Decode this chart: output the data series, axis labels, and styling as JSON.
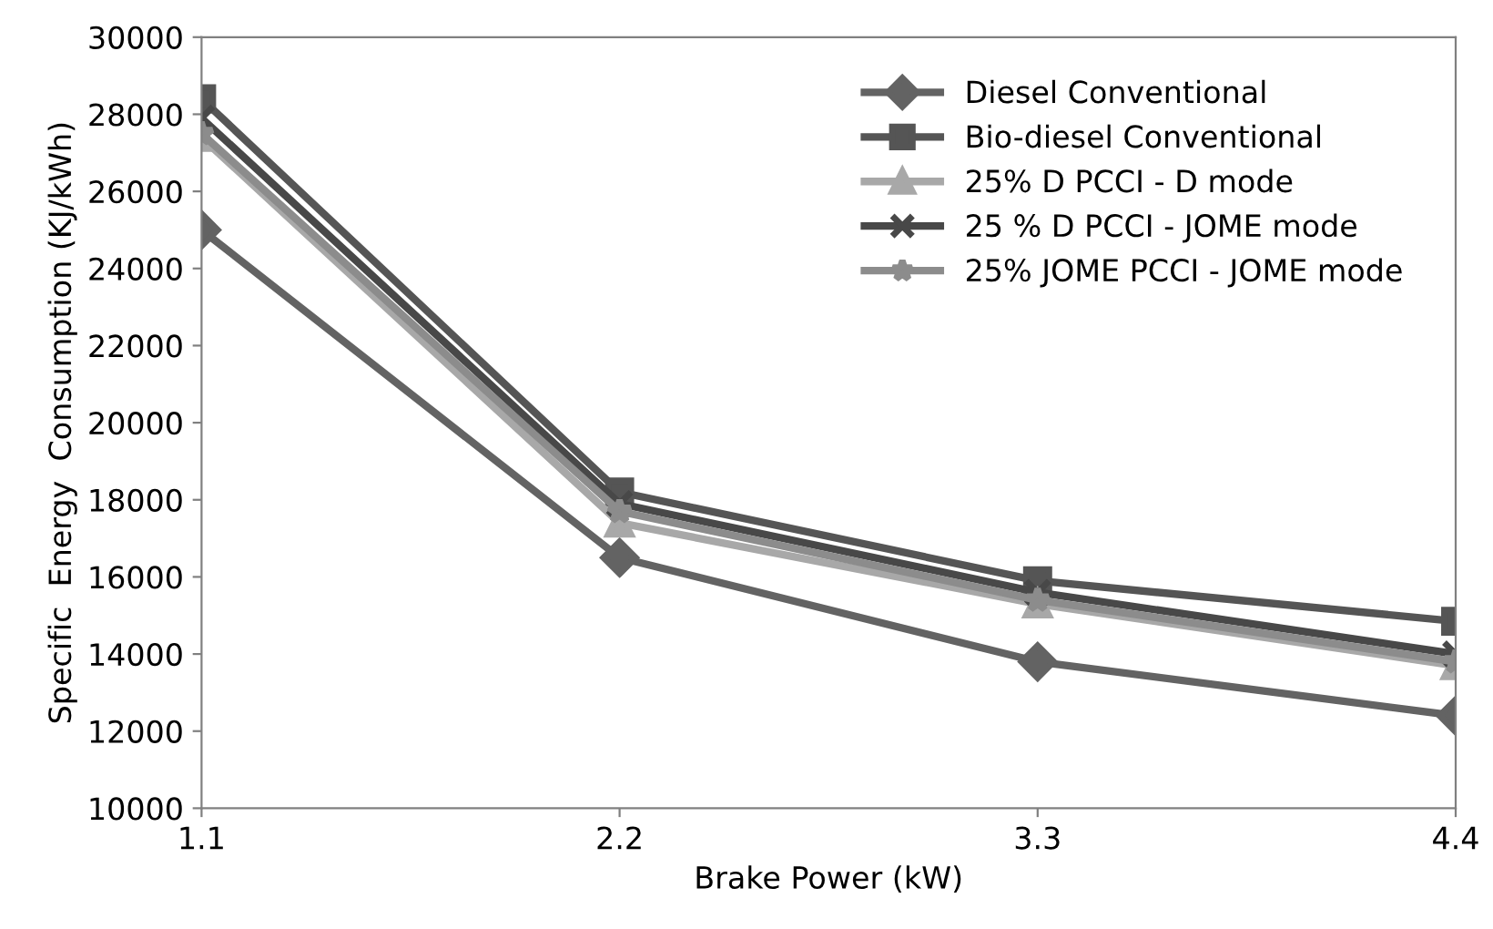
{
  "chart_data": {
    "type": "line",
    "xlabel": "Brake Power (kW)",
    "ylabel": "Specific  Energy  Consumption (KJ/kWh)",
    "x": [
      1.1,
      2.2,
      3.3,
      4.4
    ],
    "xlim": [
      1.1,
      4.4
    ],
    "xticks": [
      1.1,
      2.2,
      3.3,
      4.4
    ],
    "ylim": [
      10000,
      30000
    ],
    "yticks": [
      10000,
      12000,
      14000,
      16000,
      18000,
      20000,
      22000,
      24000,
      26000,
      28000,
      30000
    ],
    "grid": false,
    "legend": "top right",
    "line_style": "solid",
    "series": [
      {
        "name": "Diesel Conventional",
        "color": "#636363",
        "marker": "diamond",
        "values": [
          25000,
          16500,
          13800,
          12400
        ]
      },
      {
        "name": "Bio-diesel Conventional",
        "color": "#555555",
        "marker": "square",
        "values": [
          28400,
          18200,
          15900,
          14850
        ]
      },
      {
        "name": "25% D PCCI - D mode",
        "color": "#a8a8a8",
        "marker": "triangle",
        "values": [
          27400,
          17400,
          15300,
          13700
        ]
      },
      {
        "name": "25 % D PCCI - JOME mode",
        "color": "#484848",
        "marker": "cross",
        "values": [
          27900,
          17900,
          15600,
          14000
        ]
      },
      {
        "name": "25% JOME PCCI - JOME mode",
        "color": "#8c8c8c",
        "marker": "star",
        "values": [
          27500,
          17700,
          15400,
          13800
        ]
      }
    ]
  }
}
